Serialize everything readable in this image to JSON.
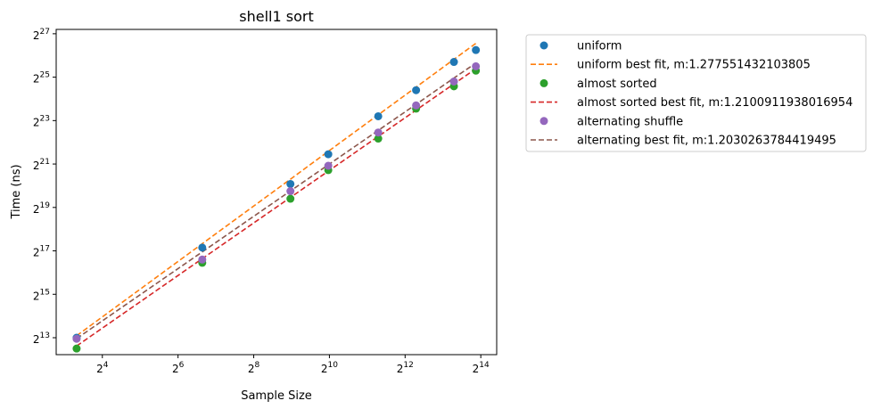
{
  "chart_data": {
    "type": "scatter",
    "title": "shell1 sort",
    "xlabel": "Sample Size",
    "ylabel": "Time (ns)",
    "x_scale": "log2",
    "y_scale": "log2",
    "xlim_log2": [
      2.78,
      14.42
    ],
    "ylim_log2": [
      12.22,
      27.2
    ],
    "x_ticks": [
      {
        "base": "2",
        "exp": "4",
        "log2": 4
      },
      {
        "base": "2",
        "exp": "6",
        "log2": 6
      },
      {
        "base": "2",
        "exp": "8",
        "log2": 8
      },
      {
        "base": "2",
        "exp": "10",
        "log2": 10
      },
      {
        "base": "2",
        "exp": "12",
        "log2": 12
      },
      {
        "base": "2",
        "exp": "14",
        "log2": 14
      }
    ],
    "y_ticks": [
      {
        "base": "2",
        "exp": "13",
        "log2": 13
      },
      {
        "base": "2",
        "exp": "15",
        "log2": 15
      },
      {
        "base": "2",
        "exp": "17",
        "log2": 17
      },
      {
        "base": "2",
        "exp": "19",
        "log2": 19
      },
      {
        "base": "2",
        "exp": "21",
        "log2": 21
      },
      {
        "base": "2",
        "exp": "23",
        "log2": 23
      },
      {
        "base": "2",
        "exp": "25",
        "log2": 25
      },
      {
        "base": "2",
        "exp": "27",
        "log2": 27
      }
    ],
    "x_log2": [
      3.32,
      6.64,
      8.97,
      9.97,
      11.29,
      12.29,
      13.29,
      13.87
    ],
    "series": [
      {
        "name": "uniform",
        "kind": "scatter",
        "color": "#1f77b4",
        "y_log2": [
          13.0,
          17.15,
          20.08,
          21.45,
          23.2,
          24.4,
          25.7,
          26.25
        ]
      },
      {
        "name": "uniform best fit, m:1.277551432103805",
        "kind": "fit",
        "color": "#ff7f0e",
        "y_log2": [
          13.09,
          17.33,
          20.3,
          21.58,
          23.27,
          24.54,
          25.82,
          26.56
        ]
      },
      {
        "name": "almost sorted",
        "kind": "scatter",
        "color": "#2ca02c",
        "y_log2": [
          12.5,
          16.45,
          19.4,
          20.72,
          22.17,
          23.55,
          24.58,
          25.3
        ]
      },
      {
        "name": "almost sorted best fit, m:1.2100911938016954",
        "kind": "fit",
        "color": "#d62728",
        "y_log2": [
          12.62,
          16.64,
          19.46,
          20.67,
          22.27,
          23.48,
          24.69,
          25.39
        ]
      },
      {
        "name": "alternating shuffle",
        "kind": "scatter",
        "color": "#9467bd",
        "y_log2": [
          12.95,
          16.6,
          19.75,
          20.92,
          22.45,
          23.7,
          24.8,
          25.5
        ]
      },
      {
        "name": "alternating best fit, m:1.2030263784419495",
        "kind": "fit",
        "color": "#8c564b",
        "y_log2": [
          12.96,
          16.95,
          19.76,
          20.96,
          22.55,
          23.75,
          24.96,
          25.65
        ]
      }
    ],
    "legend_position": "outside-right-top"
  }
}
